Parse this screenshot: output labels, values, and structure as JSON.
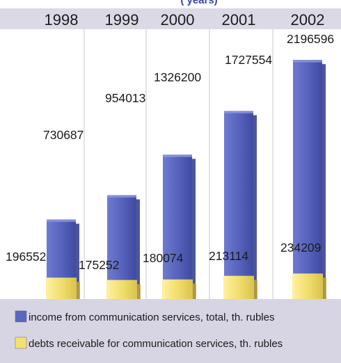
{
  "chart_data": {
    "type": "bar",
    "title_fragment": "(                                        years)",
    "categories": [
      "1998",
      "1999",
      "2000",
      "2001",
      "2002"
    ],
    "series": [
      {
        "name": "income from communication services, total, th. rubles",
        "values": [
          730687,
          954013,
          1326200,
          1727554,
          2196596
        ],
        "color": "#5a67bf"
      },
      {
        "name": "debts receivable for communication services, th. rubles",
        "values": [
          196552,
          175252,
          180074,
          213114,
          234209
        ],
        "color": "#f4e06d"
      }
    ],
    "value_labels": [
      "730687",
      "954013",
      "1326200",
      "1727554",
      "2196596",
      "196552",
      "175252",
      "180074",
      "213114",
      "234209"
    ],
    "ylim": [
      0,
      2300000
    ],
    "grid": false,
    "legend_position": "bottom"
  },
  "colors": {
    "header_band": "#dcd9e6",
    "legend_band": "#d7d4e4",
    "background": "#ffffff",
    "separator": "#c7c5d3"
  }
}
